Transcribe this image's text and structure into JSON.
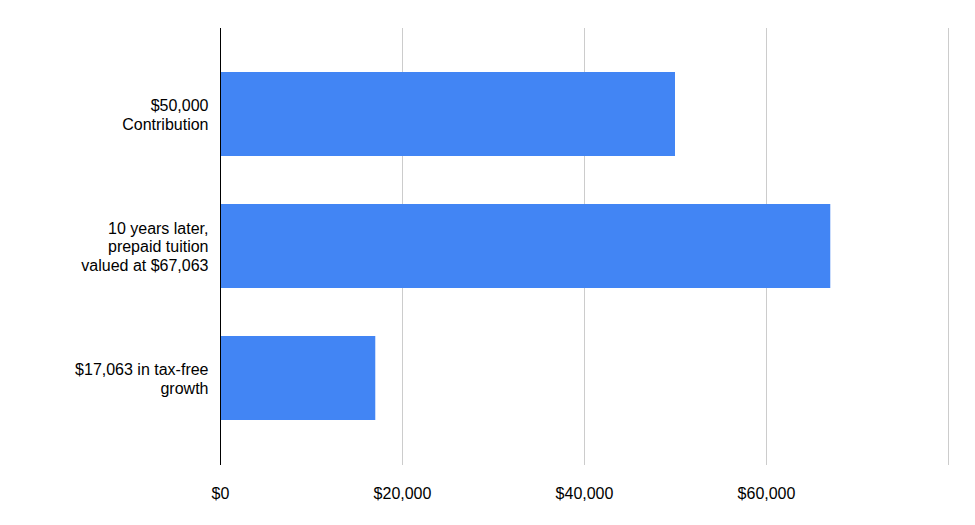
{
  "chart_data": {
    "type": "bar",
    "orientation": "horizontal",
    "categories": [
      "$50,000\nContribution",
      "10 years later,\nprepaid tuition\nvalued at $67,063",
      "$17,063 in tax-free\ngrowth"
    ],
    "values": [
      50000,
      67063,
      17063
    ],
    "color": "#4285f4",
    "xlim": [
      0,
      80000
    ],
    "xticks": [
      {
        "value": 0,
        "label": "$0"
      },
      {
        "value": 20000,
        "label": "$20,000"
      },
      {
        "value": 40000,
        "label": "$40,000"
      },
      {
        "value": 60000,
        "label": "$60,000"
      }
    ],
    "grid": true
  }
}
